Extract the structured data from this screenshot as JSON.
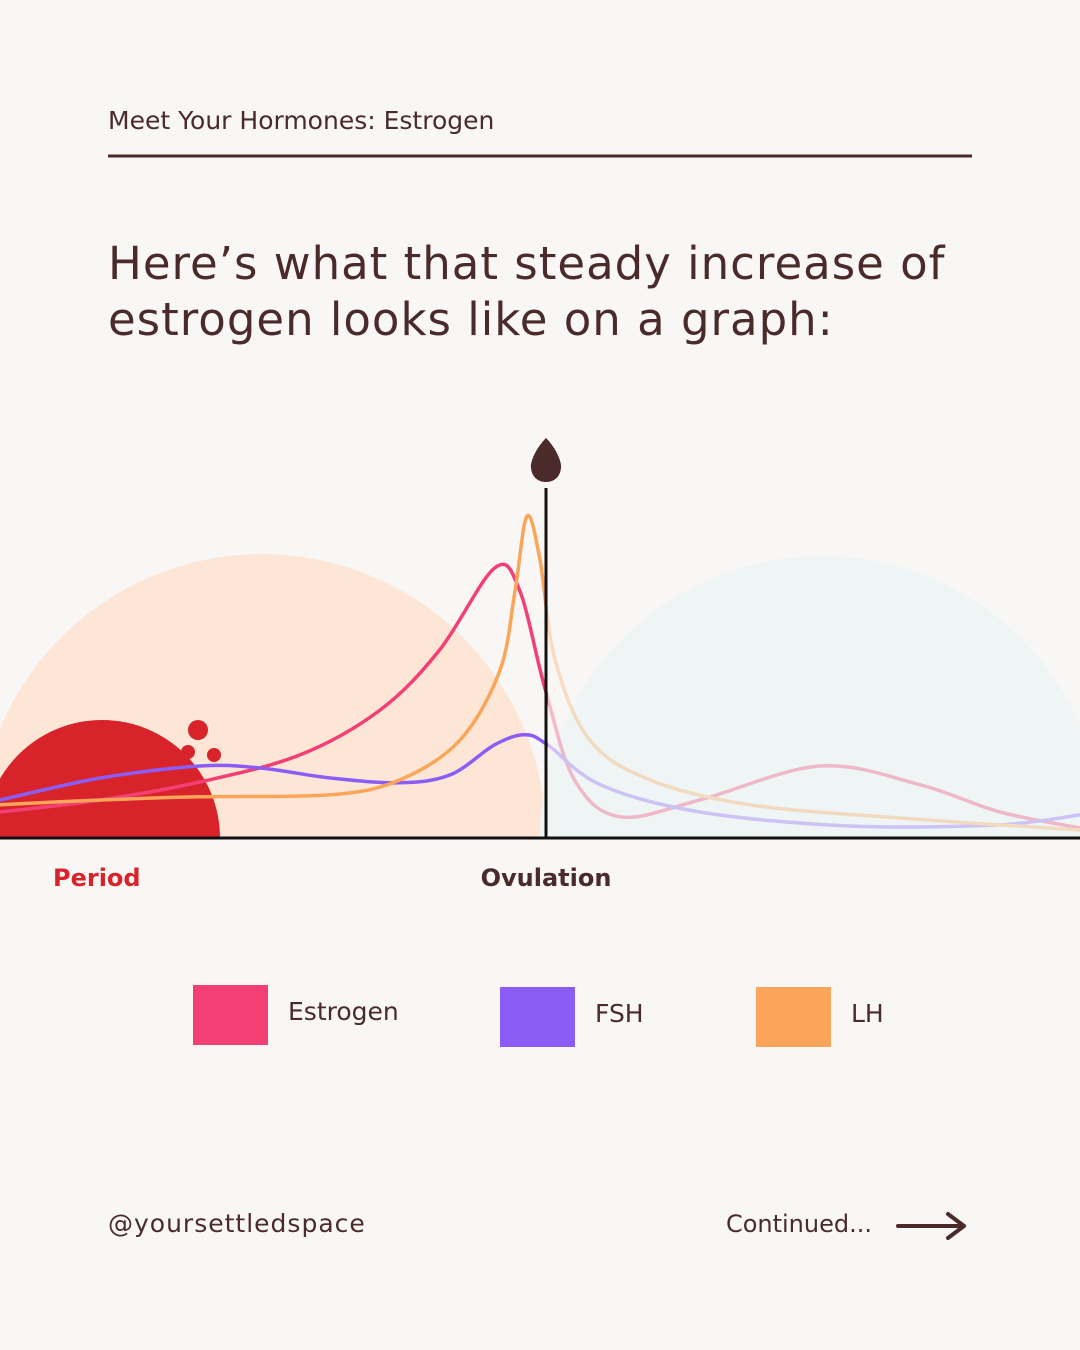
{
  "header": {
    "title": "Meet Your Hormones: Estrogen"
  },
  "headline": "Here’s what that steady increase of estrogen looks like on a graph:",
  "chart_data": {
    "type": "line",
    "xlim": [
      0,
      100
    ],
    "ylim": [
      0,
      100
    ],
    "annotations": {
      "period": "Period",
      "ovulation": "Ovulation"
    },
    "series": [
      {
        "name": "Estrogen",
        "color": "#f43f74",
        "x": [
          0,
          9.3,
          18.5,
          27.8,
          35.2,
          40.7,
          45.8,
          48.1,
          50.5,
          53.2,
          57.4,
          64.8,
          75.9,
          85.2,
          92.6,
          100
        ],
        "values": [
          6.5,
          9.5,
          14,
          20.8,
          32,
          47,
          67.5,
          62,
          37,
          14.5,
          5.3,
          9.5,
          18,
          13.3,
          6.5,
          2.5
        ]
      },
      {
        "name": "FSH",
        "color": "#8b5cf6",
        "x": [
          0,
          9.3,
          18.5,
          24.1,
          30.6,
          37,
          41.7,
          45.8,
          48.6,
          50.7,
          55.6,
          64.8,
          78.7,
          92.6,
          100
        ],
        "values": [
          9.5,
          15,
          18,
          17.5,
          15,
          13.8,
          15.8,
          23.3,
          25.8,
          23.3,
          13.3,
          6.5,
          3,
          3.3,
          5.8
        ]
      },
      {
        "name": "LH",
        "color": "#fba55a",
        "x": [
          0,
          9.3,
          18.5,
          30.6,
          37,
          42.6,
          46.3,
          47.7,
          48.8,
          50,
          51.4,
          54.6,
          60.2,
          69.4,
          83.3,
          100
        ],
        "values": [
          8.3,
          9.5,
          10.3,
          10.8,
          14.5,
          24.5,
          42,
          62,
          80.5,
          69.5,
          44.5,
          24.5,
          14.5,
          8.3,
          5,
          2
        ]
      }
    ]
  },
  "footer": {
    "handle": "@yoursettledspace",
    "continued": "Continued..."
  }
}
